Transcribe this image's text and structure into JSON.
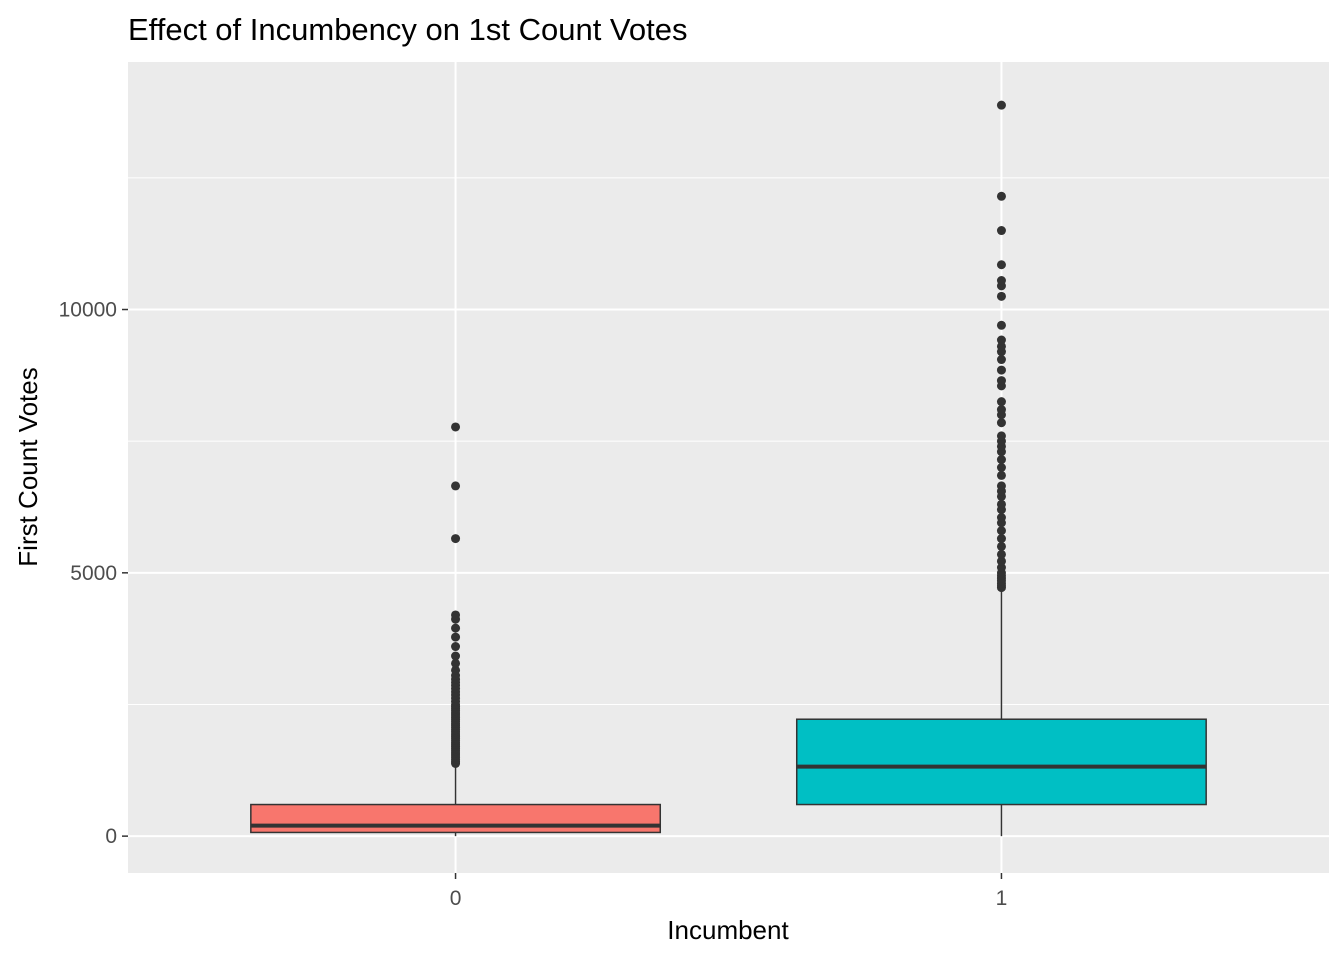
{
  "chart_data": {
    "type": "boxplot",
    "title": "Effect of Incumbency on 1st Count Votes",
    "xlabel": "Incumbent",
    "ylabel": "First Count Votes",
    "categories": [
      "0",
      "1"
    ],
    "yticks": [
      {
        "value": 0,
        "label": "0"
      },
      {
        "value": 5000,
        "label": "5000"
      },
      {
        "value": 10000,
        "label": "10000"
      }
    ],
    "y_minor_ticks": [
      2500,
      7500,
      12500
    ],
    "ylim": [
      -700,
      14700
    ],
    "grid": true,
    "legend": "none",
    "boxes": [
      {
        "category": "0",
        "fill": "#F8766D",
        "whisker_low": 0,
        "q1": 70,
        "median": 200,
        "q3": 600,
        "whisker_high": 1350,
        "outliers": [
          1380,
          1420,
          1460,
          1500,
          1540,
          1580,
          1620,
          1660,
          1700,
          1740,
          1780,
          1820,
          1860,
          1900,
          1940,
          1980,
          2020,
          2060,
          2100,
          2140,
          2180,
          2220,
          2260,
          2300,
          2340,
          2380,
          2420,
          2460,
          2500,
          2560,
          2620,
          2680,
          2740,
          2800,
          2860,
          2920,
          2980,
          3050,
          3150,
          3280,
          3420,
          3600,
          3780,
          3950,
          4120,
          4200,
          5650,
          6650,
          7770
        ]
      },
      {
        "category": "1",
        "fill": "#00BFC4",
        "whisker_low": 0,
        "q1": 600,
        "median": 1320,
        "q3": 2220,
        "whisker_high": 4700,
        "outliers": [
          4720,
          4760,
          4800,
          4850,
          4900,
          4950,
          5000,
          5100,
          5220,
          5350,
          5500,
          5650,
          5800,
          5950,
          6050,
          6200,
          6300,
          6450,
          6550,
          6650,
          6850,
          7000,
          7150,
          7300,
          7400,
          7500,
          7600,
          7850,
          8000,
          8100,
          8250,
          8550,
          8650,
          8850,
          9050,
          9200,
          9300,
          9420,
          9700,
          10250,
          10450,
          10550,
          10850,
          11500,
          12150,
          13880
        ]
      }
    ]
  }
}
